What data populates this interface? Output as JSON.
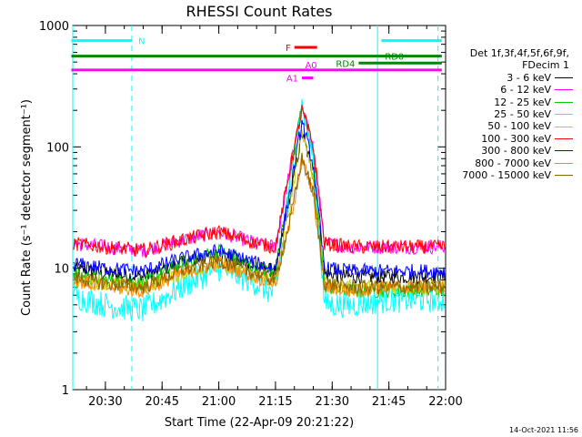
{
  "chart_data": {
    "type": "line",
    "title": "RHESSI Count Rates",
    "xlabel": "Start Time (22-Apr-09 20:21:22)",
    "ylabel": "Count Rate (s⁻¹ detector segment⁻¹)",
    "y_scale": "log",
    "ylim": [
      1,
      1000
    ],
    "xlim": [
      "20:21:22",
      "22:00:00"
    ],
    "x_ticks": [
      "20:30",
      "20:45",
      "21:00",
      "21:15",
      "21:30",
      "21:45",
      "22:00"
    ],
    "y_ticks": [
      "1",
      "10",
      "100",
      "1000"
    ],
    "legend_title": [
      "Det 1f,3f,4f,5f,6f,9f,",
      "FDecim 1"
    ],
    "series": [
      {
        "name": "3 - 6 keV",
        "color": "#000000",
        "x": [
          "20:21",
          "20:30",
          "20:40",
          "20:50",
          "21:00",
          "21:10",
          "21:15",
          "21:19",
          "21:22",
          "21:25",
          "21:28",
          "21:35",
          "21:45",
          "21:55",
          "21:59"
        ],
        "y": [
          10,
          9,
          8.5,
          11,
          13,
          10,
          9.5,
          40,
          130,
          60,
          9,
          8.5,
          8.5,
          8.5,
          8.5
        ]
      },
      {
        "name": "6 - 12 keV",
        "color": "#ff00ff",
        "x": [
          "20:21",
          "20:30",
          "20:40",
          "20:50",
          "21:00",
          "21:10",
          "21:15",
          "21:19",
          "21:22",
          "21:25",
          "21:28",
          "21:35",
          "21:45",
          "21:55",
          "21:59"
        ],
        "y": [
          16,
          15,
          14,
          17,
          20,
          16,
          15,
          70,
          210,
          100,
          16,
          15,
          15,
          15,
          15
        ]
      },
      {
        "name": "12 - 25 keV",
        "color": "#00cc00",
        "x": [
          "20:21",
          "20:30",
          "20:40",
          "20:50",
          "21:00",
          "21:10",
          "21:15",
          "21:19",
          "21:22",
          "21:25",
          "21:28",
          "21:35",
          "21:45",
          "21:55",
          "21:59"
        ],
        "y": [
          9,
          8,
          7.5,
          11,
          14,
          10,
          9,
          60,
          230,
          90,
          7,
          6.5,
          6.5,
          6.5,
          6.5
        ]
      },
      {
        "name": "25 - 50 keV",
        "color": "#00ffff",
        "x": [
          "20:21",
          "20:30",
          "20:40",
          "20:50",
          "21:00",
          "21:10",
          "21:15",
          "21:19",
          "21:22",
          "21:25",
          "21:28",
          "21:35",
          "21:45",
          "21:55",
          "21:59"
        ],
        "y": [
          6,
          5,
          4.5,
          7,
          10,
          7.5,
          6,
          50,
          220,
          80,
          5,
          5,
          5.5,
          5.5,
          5.5
        ]
      },
      {
        "name": "50 - 100 keV",
        "color": "#cccc00",
        "x": [
          "20:21",
          "20:30",
          "20:40",
          "20:50",
          "21:00",
          "21:10",
          "21:15",
          "21:19",
          "21:22",
          "21:25",
          "21:28",
          "21:35",
          "21:45",
          "21:55",
          "21:59"
        ],
        "y": [
          8,
          7.5,
          7,
          9,
          11,
          8.5,
          8,
          35,
          140,
          55,
          7.5,
          7,
          7,
          7,
          7
        ]
      },
      {
        "name": "100 - 300 keV",
        "color": "#ff0000",
        "x": [
          "20:21",
          "20:30",
          "20:40",
          "20:50",
          "21:00",
          "21:10",
          "21:15",
          "21:19",
          "21:22",
          "21:25",
          "21:28",
          "21:35",
          "21:45",
          "21:55",
          "21:59"
        ],
        "y": [
          16,
          15,
          14,
          17,
          20,
          16,
          15,
          70,
          200,
          100,
          16,
          15,
          15,
          15,
          15
        ]
      },
      {
        "name": "300 - 800 keV",
        "color": "#0000ff",
        "x": [
          "20:21",
          "20:30",
          "20:40",
          "20:50",
          "21:00",
          "21:10",
          "21:15",
          "21:19",
          "21:22",
          "21:25",
          "21:28",
          "21:35",
          "21:45",
          "21:55",
          "21:59"
        ],
        "y": [
          11,
          10,
          9.5,
          12,
          14,
          11,
          10,
          45,
          160,
          70,
          10,
          9.5,
          9.5,
          9.5,
          9.5
        ]
      },
      {
        "name": "800 - 7000 keV",
        "color": "#ff8800",
        "x": [
          "20:21",
          "20:30",
          "20:40",
          "20:50",
          "21:00",
          "21:10",
          "21:15",
          "21:19",
          "21:22",
          "21:25",
          "21:28",
          "21:35",
          "21:45",
          "21:55",
          "21:59"
        ],
        "y": [
          8,
          7,
          6.5,
          9,
          11,
          8.5,
          7.5,
          25,
          80,
          40,
          7,
          6.5,
          7,
          7,
          7
        ]
      },
      {
        "name": "7000 - 15000 keV",
        "color": "#886600",
        "x": [
          "20:21",
          "20:30",
          "20:40",
          "20:50",
          "21:00",
          "21:10",
          "21:15",
          "21:19",
          "21:22",
          "21:25",
          "21:28",
          "21:35",
          "21:45",
          "21:55",
          "21:59"
        ],
        "y": [
          8.5,
          7.5,
          7,
          9.5,
          11.5,
          9,
          8,
          26,
          80,
          42,
          7.5,
          7,
          7,
          7,
          7
        ]
      }
    ],
    "status_bars": [
      {
        "label": "N",
        "color": "#00ffff",
        "segments": [
          [
            "20:21",
            "20:37"
          ],
          [
            "21:43",
            "21:59"
          ]
        ],
        "y": 750
      },
      {
        "label": "F",
        "color": "#ff0000",
        "segments": [
          [
            "21:20",
            "21:26"
          ]
        ],
        "y": 660
      },
      {
        "label": "RD0",
        "color": "#008800",
        "segments": [
          [
            "20:21",
            "21:59"
          ]
        ],
        "y": 560
      },
      {
        "label": "RD4",
        "color": "#008800",
        "segments": [
          [
            "21:37",
            "21:59"
          ]
        ],
        "y": 490
      },
      {
        "label": "A0",
        "color": "#ff00ff",
        "segments": [
          [
            "20:21",
            "21:59"
          ]
        ],
        "y": 430
      },
      {
        "label": "A1",
        "color": "#ff00ff",
        "segments": [
          [
            "21:22",
            "21:25"
          ]
        ],
        "y": 370
      }
    ],
    "vlines": [
      {
        "x": "20:21:22",
        "color": "#00ffff",
        "style": "solid"
      },
      {
        "x": "20:37",
        "color": "#00ffff",
        "style": "dashed"
      },
      {
        "x": "21:42",
        "color": "#00ffff",
        "style": "solid"
      },
      {
        "x": "21:58",
        "color": "#00ffff",
        "style": "dashed"
      }
    ],
    "grid": false,
    "legend_position": "right"
  },
  "footer": {
    "timestamp": "14-Oct-2021 11:56"
  }
}
